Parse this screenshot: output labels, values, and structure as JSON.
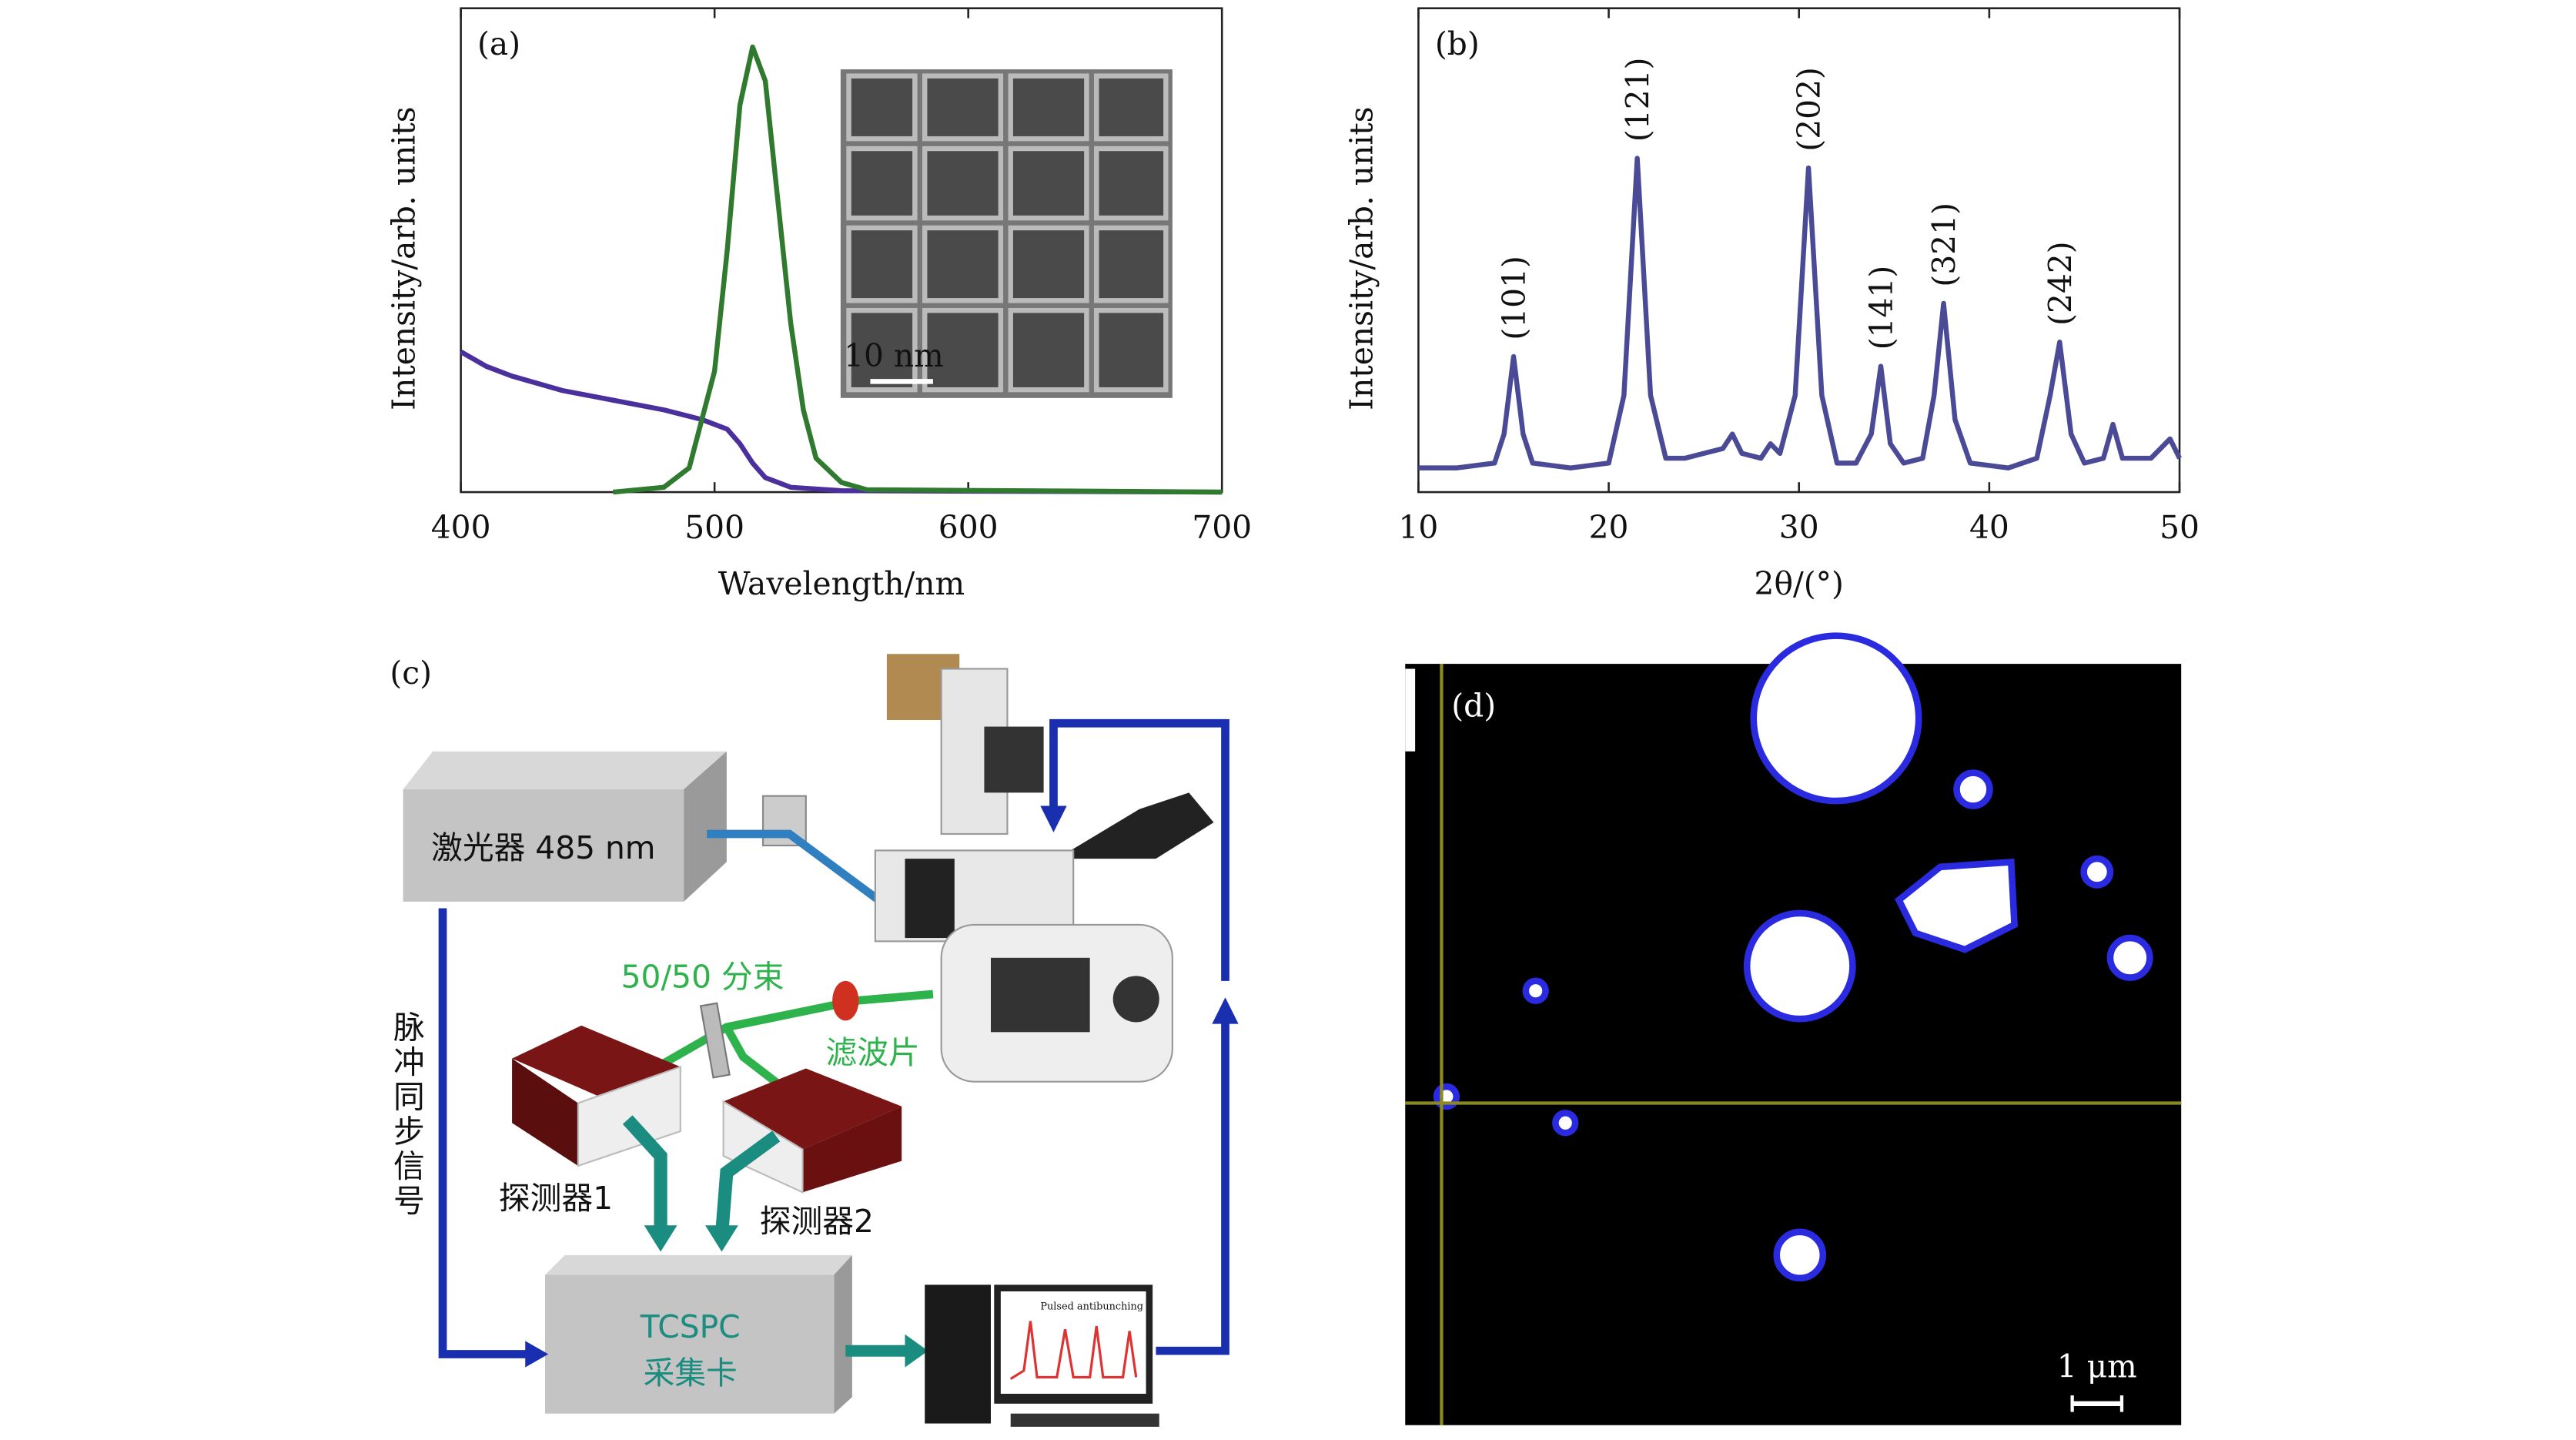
{
  "chart_data": [
    {
      "type": "line",
      "panel_label": "(a)",
      "x_label": "Wavelength/nm",
      "y_label": "Intensity/arb. units",
      "inset_scale": "10 nm",
      "xlim": [
        400,
        700
      ],
      "xticks": [
        400,
        500,
        600,
        700
      ],
      "ylim": [
        0,
        1
      ],
      "series": [
        {
          "color": "#4b2f9c",
          "x": [
            400,
            410,
            420,
            440,
            460,
            480,
            495,
            505,
            510,
            515,
            520,
            530,
            550,
            700
          ],
          "values": [
            0.29,
            0.26,
            0.24,
            0.21,
            0.19,
            0.17,
            0.15,
            0.13,
            0.1,
            0.06,
            0.03,
            0.01,
            0.003,
            0
          ]
        },
        {
          "color": "#2f7a2f",
          "x": [
            460,
            480,
            490,
            500,
            505,
            510,
            515,
            520,
            525,
            530,
            535,
            540,
            550,
            560,
            700
          ],
          "values": [
            0,
            0.01,
            0.05,
            0.25,
            0.5,
            0.8,
            0.92,
            0.85,
            0.6,
            0.35,
            0.17,
            0.07,
            0.02,
            0.005,
            0
          ]
        }
      ]
    },
    {
      "type": "line",
      "panel_label": "(b)",
      "x_label": "2θ/(°)",
      "y_label": "Intensity/arb. units",
      "xlim": [
        10,
        50
      ],
      "xticks": [
        10,
        20,
        30,
        40,
        50
      ],
      "ylim": [
        0,
        1
      ],
      "series": [
        {
          "color": "#4a4a96",
          "x": [
            10,
            12,
            14,
            14.5,
            15,
            15.5,
            16,
            18,
            20,
            20.8,
            21.5,
            22.2,
            23,
            24,
            25,
            26,
            26.5,
            27,
            28,
            28.5,
            29,
            29.8,
            30.5,
            31.2,
            32,
            33,
            33.8,
            34.3,
            34.8,
            35.5,
            36.5,
            37.1,
            37.6,
            38.2,
            39,
            41,
            42.5,
            43.2,
            43.7,
            44.3,
            45,
            46,
            46.5,
            47,
            48.5,
            49.5,
            50
          ],
          "values": [
            0.05,
            0.05,
            0.06,
            0.12,
            0.28,
            0.12,
            0.06,
            0.05,
            0.06,
            0.2,
            0.69,
            0.2,
            0.07,
            0.07,
            0.08,
            0.09,
            0.12,
            0.08,
            0.07,
            0.1,
            0.08,
            0.2,
            0.67,
            0.2,
            0.06,
            0.06,
            0.12,
            0.26,
            0.1,
            0.06,
            0.07,
            0.2,
            0.39,
            0.15,
            0.06,
            0.05,
            0.07,
            0.2,
            0.31,
            0.12,
            0.06,
            0.07,
            0.14,
            0.07,
            0.07,
            0.11,
            0.07
          ]
        }
      ],
      "annotations": [
        {
          "text": "(101)",
          "x": 15
        },
        {
          "text": "(121)",
          "x": 21.5
        },
        {
          "text": "(202)",
          "x": 30.5
        },
        {
          "text": "(141)",
          "x": 34.3
        },
        {
          "text": "(321)",
          "x": 37.6
        },
        {
          "text": "(242)",
          "x": 43.7
        }
      ]
    }
  ],
  "diagram": {
    "panel_label": "(c)",
    "laser": "激光器 485 nm",
    "splitter": "50/50 分束",
    "filter": "滤波片",
    "detector_1": "探测器1",
    "detector_2": "探测器2",
    "card_line_1": "TCSPC",
    "card_line_2": "采集卡",
    "sync_signal": "脉冲同步信号",
    "monitor_title": "Pulsed antibunching"
  },
  "image": {
    "panel_label": "(d)",
    "scale_bar": "1 μm"
  }
}
